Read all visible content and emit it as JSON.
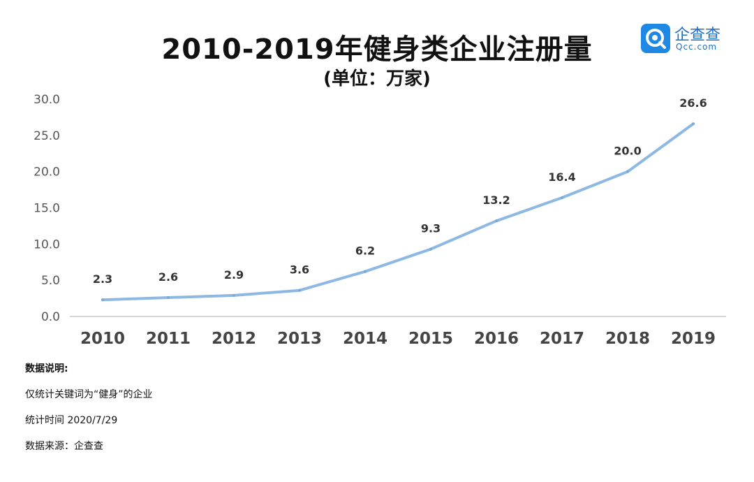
{
  "header": {
    "title": "2010-2019年健身类企业注册量",
    "subtitle": "(单位：万家)"
  },
  "logo": {
    "name_cn": "企查查",
    "domain": "Qcc.com",
    "icon": "qcc-logo-icon",
    "color": "#1e88e5"
  },
  "chart_data": {
    "type": "line",
    "title": "2010-2019年健身类企业注册量",
    "subtitle": "(单位：万家)",
    "categories": [
      "2010",
      "2011",
      "2012",
      "2013",
      "2014",
      "2015",
      "2016",
      "2017",
      "2018",
      "2019"
    ],
    "series": [
      {
        "values": [
          2.3,
          2.6,
          2.9,
          3.6,
          6.2,
          9.3,
          13.2,
          16.4,
          20.0,
          26.6
        ],
        "color": "#8db8e3"
      }
    ],
    "data_labels": [
      "2.3",
      "2.6",
      "2.9",
      "3.6",
      "6.2",
      "9.3",
      "13.2",
      "16.4",
      "20.0",
      "26.6"
    ],
    "ylim": [
      0,
      30
    ],
    "yticks": [
      "0.0",
      "5.0",
      "10.0",
      "15.0",
      "20.0",
      "25.0",
      "30.0"
    ],
    "xlabel": "",
    "ylabel": "",
    "grid": false,
    "legend": "none"
  },
  "notes": {
    "heading": "数据说明:",
    "line1": "仅统计关键词为“健身”的企业",
    "line2": "统计时间 2020/7/29",
    "line3": "数据来源：企查查"
  }
}
